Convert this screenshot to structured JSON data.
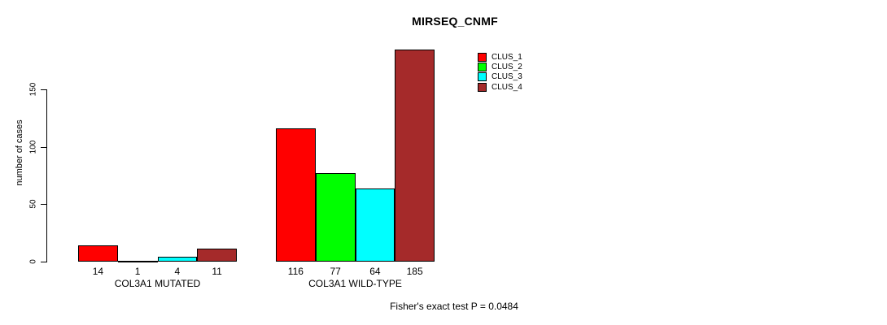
{
  "chart_data": {
    "type": "bar",
    "title": "MIRSEQ_CNMF",
    "ylabel": "number of cases",
    "xlabel": "",
    "categories": [
      "COL3A1 MUTATED",
      "COL3A1 WILD-TYPE"
    ],
    "series": [
      {
        "name": "CLUS_1",
        "color": "#FF0000",
        "values": [
          14,
          116
        ]
      },
      {
        "name": "CLUS_2",
        "color": "#00FF00",
        "values": [
          1,
          77
        ]
      },
      {
        "name": "CLUS_3",
        "color": "#00FFFF",
        "values": [
          4,
          64
        ]
      },
      {
        "name": "CLUS_4",
        "color": "#A52A2A",
        "values": [
          11,
          185
        ]
      }
    ],
    "yticks": [
      0,
      50,
      100,
      150
    ],
    "ylim": [
      0,
      190
    ],
    "grid": false,
    "legend_position": "top-right",
    "bar_border_color": "#000000",
    "show_bar_value_labels": true,
    "annotation": "Fisher's exact test P = 0.0484"
  }
}
